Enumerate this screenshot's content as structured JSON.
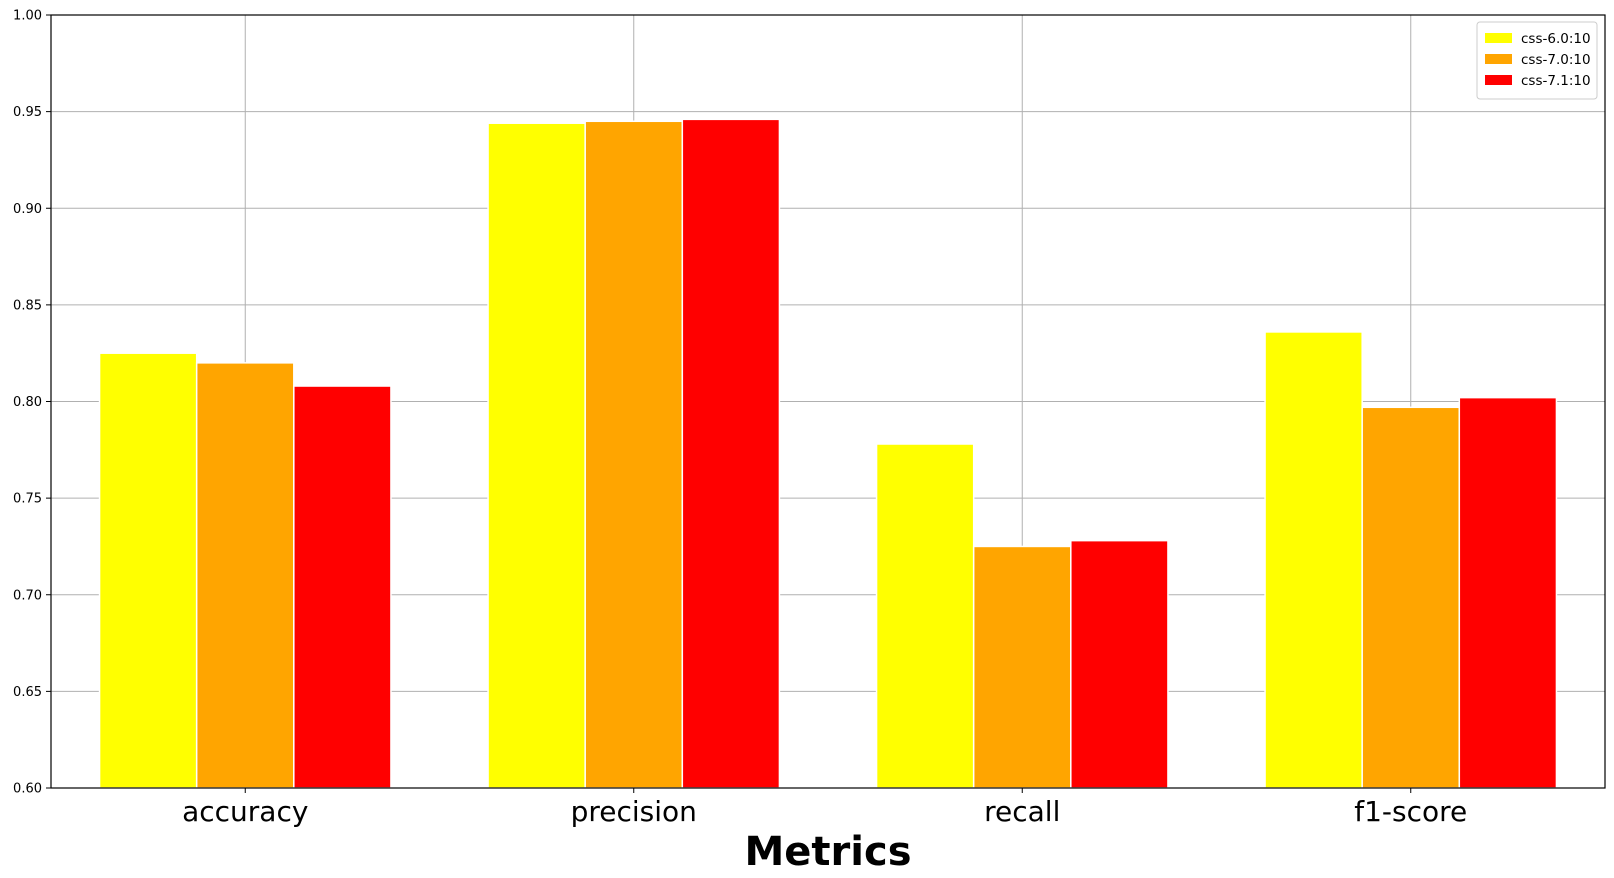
{
  "chart_data": {
    "type": "bar",
    "title": "",
    "xlabel": "Metrics",
    "ylabel": "",
    "categories": [
      "accuracy",
      "precision",
      "recall",
      "f1-score"
    ],
    "series": [
      {
        "name": "css-6.0:10",
        "color": "#ffff00",
        "values": [
          0.825,
          0.944,
          0.778,
          0.836
        ]
      },
      {
        "name": "css-7.0:10",
        "color": "#ffa500",
        "values": [
          0.82,
          0.945,
          0.725,
          0.797
        ]
      },
      {
        "name": "css-7.1:10",
        "color": "#ff0000",
        "values": [
          0.808,
          0.946,
          0.728,
          0.802
        ]
      }
    ],
    "ylim": [
      0.6,
      1.0
    ],
    "yticks": [
      "0.60",
      "0.65",
      "0.70",
      "0.75",
      "0.80",
      "0.85",
      "0.90",
      "0.95",
      "1.00"
    ],
    "grid": true,
    "legend_position": "top-right"
  }
}
